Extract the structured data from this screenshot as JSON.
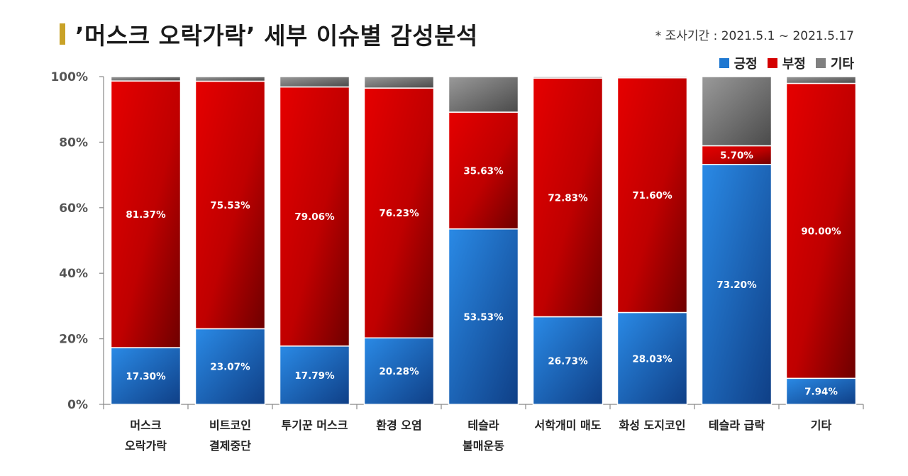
{
  "header": {
    "title": "’머스크 오락가락’ 세부 이슈별 감성분석",
    "period": "* 조사기간 : 2021.5.1 ~ 2021.5.17"
  },
  "colors": {
    "accent_bar": "#c9a227",
    "positive": "#1f78d1",
    "negative": "#d40000",
    "other": "#808080"
  },
  "chart_data": {
    "type": "bar",
    "stacked": true,
    "title": "’머스크 오락가락’ 세부 이슈별 감성분석",
    "xlabel": "",
    "ylabel": "",
    "ylim": [
      0,
      100
    ],
    "yticks": [
      "0%",
      "20%",
      "40%",
      "60%",
      "80%",
      "100%"
    ],
    "legend_position": "top-right",
    "grid": false,
    "categories": [
      [
        "머스크",
        "오락가락"
      ],
      [
        "비트코인",
        "결제중단"
      ],
      [
        "투기꾼 머스크"
      ],
      [
        "환경 오염"
      ],
      [
        "테슬라",
        "불매운동"
      ],
      [
        "서학개미 매도"
      ],
      [
        "화성 도지코인"
      ],
      [
        "테슬라 급락"
      ],
      [
        "기타"
      ]
    ],
    "series": [
      {
        "name": "긍정",
        "values": [
          17.3,
          23.07,
          17.79,
          20.28,
          53.53,
          26.73,
          28.03,
          73.2,
          7.94
        ],
        "labels": [
          "17.30%",
          "23.07%",
          "17.79%",
          "20.28%",
          "53.53%",
          "26.73%",
          "28.03%",
          "73.20%",
          "7.94%"
        ]
      },
      {
        "name": "부정",
        "values": [
          81.37,
          75.53,
          79.06,
          76.23,
          35.63,
          72.83,
          71.6,
          5.7,
          90.0
        ],
        "labels": [
          "81.37%",
          "75.53%",
          "79.06%",
          "76.23%",
          "35.63%",
          "72.83%",
          "71.60%",
          "5.70%",
          "90.00%"
        ]
      },
      {
        "name": "기타",
        "values": [
          1.33,
          1.4,
          3.15,
          3.49,
          10.84,
          0.44,
          0.37,
          21.1,
          2.06
        ],
        "labels": []
      }
    ]
  }
}
